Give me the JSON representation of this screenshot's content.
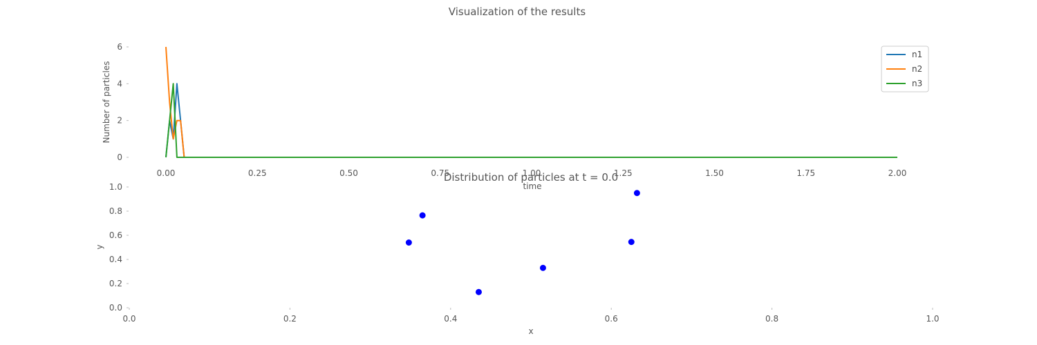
{
  "figure": {
    "suptitle": "Visualization of the results"
  },
  "chart_data": [
    {
      "type": "line",
      "title": "",
      "xlabel": "time",
      "ylabel": "Number of particles",
      "xlim": [
        0,
        2.0
      ],
      "ylim": [
        0,
        6
      ],
      "xticks": [
        "0.00",
        "0.25",
        "0.50",
        "0.75",
        "1.00",
        "1.25",
        "1.50",
        "1.75",
        "2.00"
      ],
      "yticks": [
        "0",
        "2",
        "4",
        "6"
      ],
      "grid": false,
      "legend": "top-right",
      "series": [
        {
          "name": "n1",
          "color": "#1f77b4",
          "x": [
            0,
            0.01,
            0.02,
            0.03,
            0.04,
            0.05,
            2.0
          ],
          "y": [
            0,
            2,
            1,
            4,
            2,
            0,
            0
          ]
        },
        {
          "name": "n2",
          "color": "#ff7f0e",
          "x": [
            0,
            0.01,
            0.02,
            0.03,
            0.04,
            0.05,
            2.0
          ],
          "y": [
            6,
            3,
            1,
            2,
            2,
            0,
            0
          ]
        },
        {
          "name": "n3",
          "color": "#2ca02c",
          "x": [
            0,
            0.01,
            0.02,
            0.03,
            2.0
          ],
          "y": [
            0,
            2,
            4,
            0,
            0
          ]
        }
      ]
    },
    {
      "type": "scatter",
      "title": "Distribution of particles at t = 0.0",
      "xlabel": "x",
      "ylabel": "y",
      "xlim": [
        0,
        1.0
      ],
      "ylim": [
        0,
        1.0
      ],
      "xticks": [
        "0.0",
        "0.2",
        "0.4",
        "0.6",
        "0.8",
        "1.0"
      ],
      "yticks": [
        "0.0",
        "0.2",
        "0.4",
        "0.6",
        "0.8",
        "1.0"
      ],
      "grid": false,
      "color": "#0000ff",
      "points": [
        {
          "x": 0.348,
          "y": 0.54
        },
        {
          "x": 0.365,
          "y": 0.765
        },
        {
          "x": 0.435,
          "y": 0.13
        },
        {
          "x": 0.515,
          "y": 0.33
        },
        {
          "x": 0.625,
          "y": 0.545
        },
        {
          "x": 0.632,
          "y": 0.95
        }
      ]
    }
  ]
}
